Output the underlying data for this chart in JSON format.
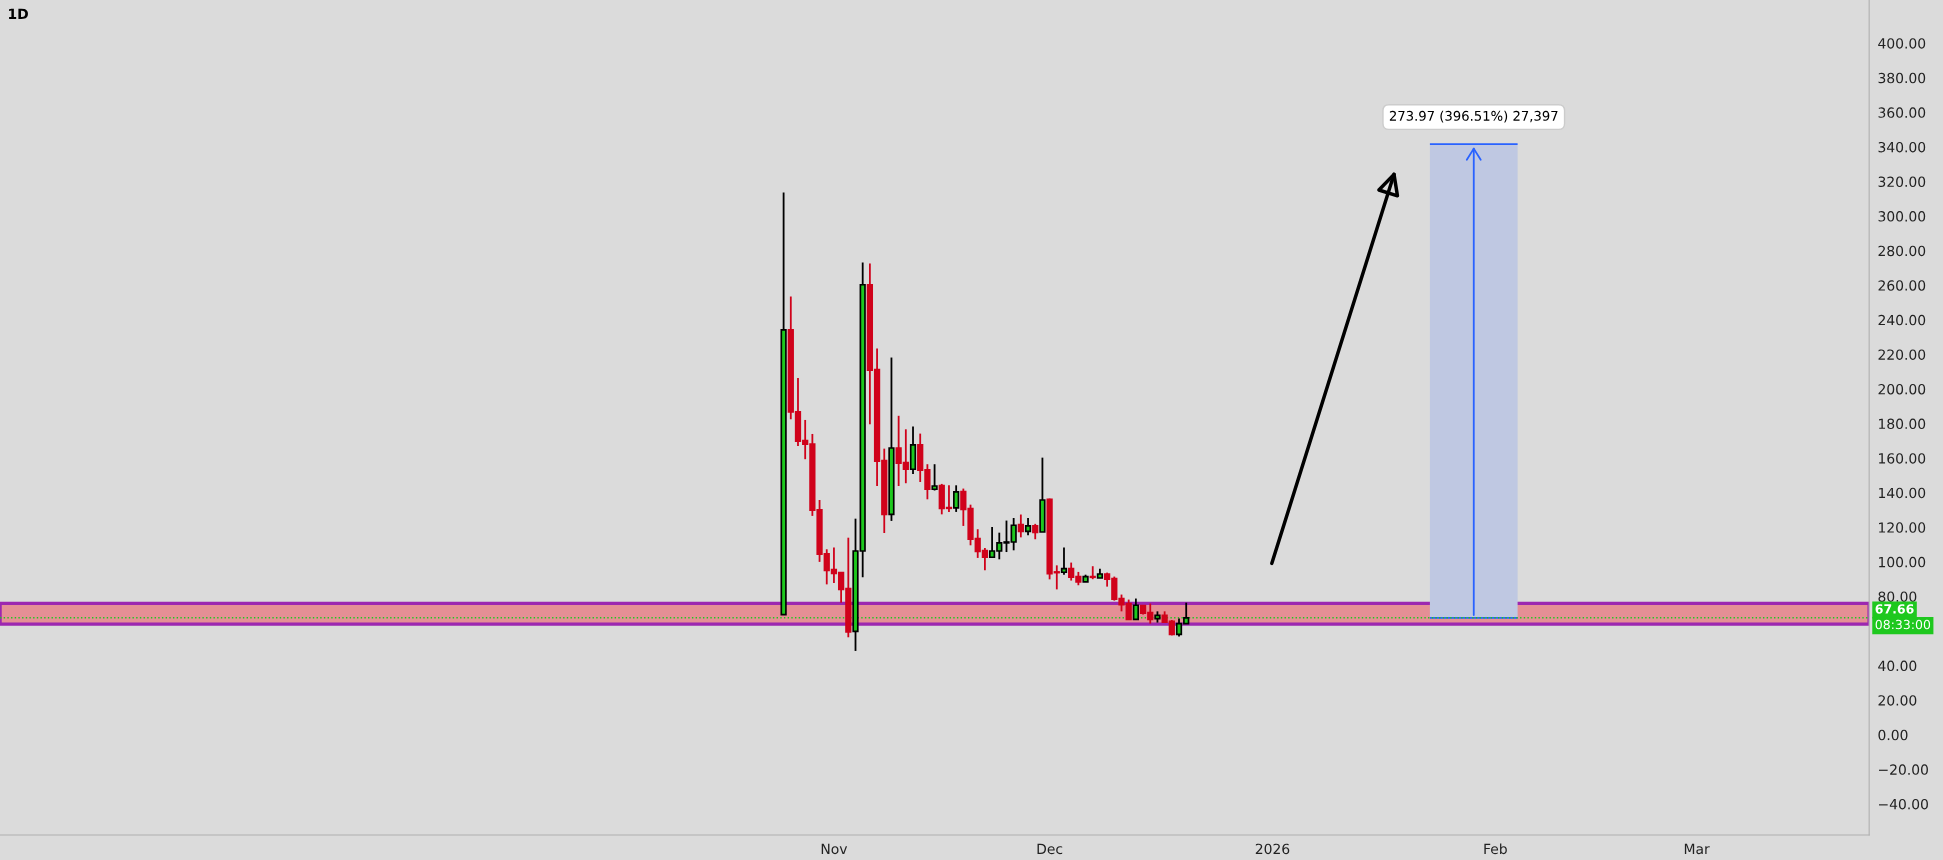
{
  "chart_data": {
    "type": "candlestick",
    "title": "1D",
    "x": [
      "2025-10-25",
      "2025-10-26",
      "2025-10-27",
      "2025-10-28",
      "2025-10-29",
      "2025-10-30",
      "2025-10-31",
      "2025-11-01",
      "2025-11-02",
      "2025-11-03",
      "2025-11-04",
      "2025-11-05",
      "2025-11-06",
      "2025-11-07",
      "2025-11-08",
      "2025-11-09",
      "2025-11-10",
      "2025-11-11",
      "2025-11-12",
      "2025-11-13",
      "2025-11-14",
      "2025-11-15",
      "2025-11-16",
      "2025-11-17",
      "2025-11-18",
      "2025-11-19",
      "2025-11-20",
      "2025-11-21",
      "2025-11-22",
      "2025-11-23",
      "2025-11-24",
      "2025-11-25",
      "2025-11-26",
      "2025-11-27",
      "2025-11-28",
      "2025-11-29",
      "2025-11-30",
      "2025-12-01",
      "2025-12-02",
      "2025-12-03",
      "2025-12-04",
      "2025-12-05",
      "2025-12-06",
      "2025-12-07",
      "2025-12-08",
      "2025-12-09",
      "2025-12-10",
      "2025-12-11",
      "2025-12-12",
      "2025-12-13",
      "2025-12-14",
      "2025-12-15",
      "2025-12-16",
      "2025-12-17",
      "2025-12-18",
      "2025-12-19",
      "2025-12-20"
    ],
    "ohlc": [
      [
        69.5,
        313.7,
        69.5,
        234.2
      ],
      [
        234.2,
        253.5,
        182.5,
        186.8
      ],
      [
        186.8,
        206.4,
        167.1,
        169.8
      ],
      [
        170.2,
        182.1,
        159.4,
        168.1
      ],
      [
        168.2,
        174.0,
        126.6,
        129.9
      ],
      [
        130.1,
        135.8,
        100.0,
        104.4
      ],
      [
        104.6,
        107.3,
        87.0,
        95.1
      ],
      [
        95.5,
        108.3,
        87.8,
        93.4
      ],
      [
        93.8,
        93.8,
        76.4,
        84.1
      ],
      [
        84.5,
        114.0,
        56.4,
        59.5
      ],
      [
        59.8,
        125.0,
        48.5,
        106.3
      ],
      [
        106.3,
        273.2,
        91.1,
        260.3
      ],
      [
        260.3,
        272.6,
        179.6,
        210.9
      ],
      [
        211.3,
        223.4,
        143.9,
        158.2
      ],
      [
        158.6,
        165.5,
        116.7,
        127.5
      ],
      [
        127.5,
        218.2,
        123.7,
        165.9
      ],
      [
        165.9,
        184.5,
        143.9,
        157.1
      ],
      [
        157.5,
        176.7,
        145.5,
        153.6
      ],
      [
        153.6,
        178.3,
        150.9,
        167.7
      ],
      [
        167.7,
        174.2,
        146.2,
        153.0
      ],
      [
        153.2,
        156.5,
        136.2,
        142.0
      ],
      [
        142.0,
        156.5,
        141.3,
        143.9
      ],
      [
        144.1,
        145.1,
        127.5,
        131.0
      ],
      [
        131.4,
        144.3,
        128.9,
        131.0
      ],
      [
        131.2,
        144.3,
        128.9,
        140.5
      ],
      [
        140.7,
        142.4,
        120.8,
        130.4
      ],
      [
        130.8,
        133.1,
        109.6,
        113.1
      ],
      [
        113.5,
        118.9,
        102.3,
        106.1
      ],
      [
        106.5,
        108.1,
        95.1,
        102.7
      ],
      [
        102.7,
        120.2,
        102.7,
        106.3
      ],
      [
        106.3,
        116.9,
        101.5,
        111.0
      ],
      [
        111.0,
        123.9,
        105.7,
        111.5
      ],
      [
        111.5,
        125.4,
        106.7,
        121.2
      ],
      [
        121.6,
        127.4,
        114.2,
        117.7
      ],
      [
        117.7,
        125.4,
        115.4,
        120.8
      ],
      [
        120.8,
        122.0,
        113.1,
        117.1
      ],
      [
        117.3,
        160.3,
        117.3,
        135.8
      ],
      [
        136.2,
        136.6,
        89.9,
        93.2
      ],
      [
        94.2,
        98.0,
        84.1,
        93.8
      ],
      [
        94.0,
        108.3,
        92.6,
        96.1
      ],
      [
        96.1,
        99.6,
        89.2,
        91.1
      ],
      [
        91.5,
        94.2,
        86.5,
        88.4
      ],
      [
        88.4,
        92.6,
        88.4,
        91.5
      ],
      [
        91.5,
        97.5,
        90.0,
        91.1
      ],
      [
        90.7,
        96.1,
        90.7,
        93.0
      ],
      [
        93.0,
        93.8,
        85.7,
        90.0
      ],
      [
        90.3,
        91.5,
        77.6,
        78.4
      ],
      [
        78.8,
        81.1,
        71.4,
        75.3
      ],
      [
        75.9,
        78.2,
        66.8,
        66.8
      ],
      [
        66.8,
        78.8,
        66.8,
        74.9
      ],
      [
        74.7,
        74.7,
        69.5,
        70.3
      ],
      [
        70.7,
        75.9,
        64.3,
        66.8
      ],
      [
        67.2,
        71.4,
        64.9,
        69.1
      ],
      [
        69.1,
        71.4,
        65.2,
        65.2
      ],
      [
        65.6,
        66.4,
        57.5,
        58.1
      ],
      [
        58.1,
        67.2,
        56.9,
        64.3
      ],
      [
        64.3,
        76.4,
        64.3,
        67.66
      ]
    ],
    "colors": [
      "#1ec81e",
      "#d0021b",
      "#d0021b",
      "#d0021b",
      "#d0021b",
      "#d0021b",
      "#d0021b",
      "#d0021b",
      "#d0021b",
      "#d0021b",
      "#1ec81e",
      "#1ec81e",
      "#d0021b",
      "#d0021b",
      "#d0021b",
      "#1ec81e",
      "#d0021b",
      "#d0021b",
      "#1ec81e",
      "#d0021b",
      "#d0021b",
      "#1ec81e",
      "#d0021b",
      "#d0021b",
      "#1ec81e",
      "#d0021b",
      "#d0021b",
      "#d0021b",
      "#d0021b",
      "#1ec81e",
      "#1ec81e",
      "#1ec81e",
      "#1ec81e",
      "#d0021b",
      "#1ec81e",
      "#d0021b",
      "#1ec81e",
      "#d0021b",
      "#d0021b",
      "#1ec81e",
      "#d0021b",
      "#d0021b",
      "#1ec81e",
      "#d0021b",
      "#1ec81e",
      "#d0021b",
      "#d0021b",
      "#d0021b",
      "#d0021b",
      "#1ec81e",
      "#d0021b",
      "#d0021b",
      "#1ec81e",
      "#d0021b",
      "#d0021b",
      "#1ec81e",
      "#1ec81e"
    ],
    "series": [
      {
        "type": "bar",
        "x": [
          "2026-01-29"
        ],
        "base": [
          67.66
        ],
        "values": [
          273.97
        ],
        "color": "#bfc8e2"
      }
    ],
    "annotations": [
      {
        "text": "273.97 (396.51%) 27,397",
        "x": "2026-01-29",
        "y": 341.63
      },
      "08:33:00"
    ],
    "ref_lines": [
      {
        "axis": "y",
        "value": 67.66,
        "label": "67.66",
        "color": "#1ec81e",
        "line_style": "dotted"
      }
    ],
    "bands": [
      {
        "axis": "y",
        "from": 64,
        "to": 76,
        "color": "#e58f95"
      }
    ],
    "xlim": [
      "2025-07-08",
      "2026-03-25"
    ],
    "xticks": [
      {
        "value": "2025-11-01",
        "label": "Nov"
      },
      {
        "value": "2025-12-01",
        "label": "Dec"
      },
      {
        "value": "2026-01-01",
        "label": "2026"
      },
      {
        "value": "2026-02-01",
        "label": "Feb"
      },
      {
        "value": "2026-03-01",
        "label": "Mar"
      }
    ],
    "ylim": [
      -58,
      425
    ],
    "yticks": [
      {
        "value": -40,
        "label": "−40.00"
      },
      {
        "value": -20,
        "label": "−20.00"
      },
      {
        "value": 0,
        "label": "0.00"
      },
      {
        "value": 20,
        "label": "20.00"
      },
      {
        "value": 40,
        "label": "40.00"
      },
      {
        "value": 80,
        "label": "80.00"
      },
      {
        "value": 100,
        "label": "100.00"
      },
      {
        "value": 120,
        "label": "120.00"
      },
      {
        "value": 140,
        "label": "140.00"
      },
      {
        "value": 160,
        "label": "160.00"
      },
      {
        "value": 180,
        "label": "180.00"
      },
      {
        "value": 200,
        "label": "200.00"
      },
      {
        "value": 220,
        "label": "220.00"
      },
      {
        "value": 240,
        "label": "240.00"
      },
      {
        "value": 260,
        "label": "260.00"
      },
      {
        "value": 280,
        "label": "280.00"
      },
      {
        "value": 300,
        "label": "300.00"
      },
      {
        "value": 320,
        "label": "320.00"
      },
      {
        "value": 340,
        "label": "340.00"
      },
      {
        "value": 360,
        "label": "360.00"
      },
      {
        "value": 380,
        "label": "380.00"
      },
      {
        "value": 400,
        "label": "400.00"
      }
    ]
  }
}
